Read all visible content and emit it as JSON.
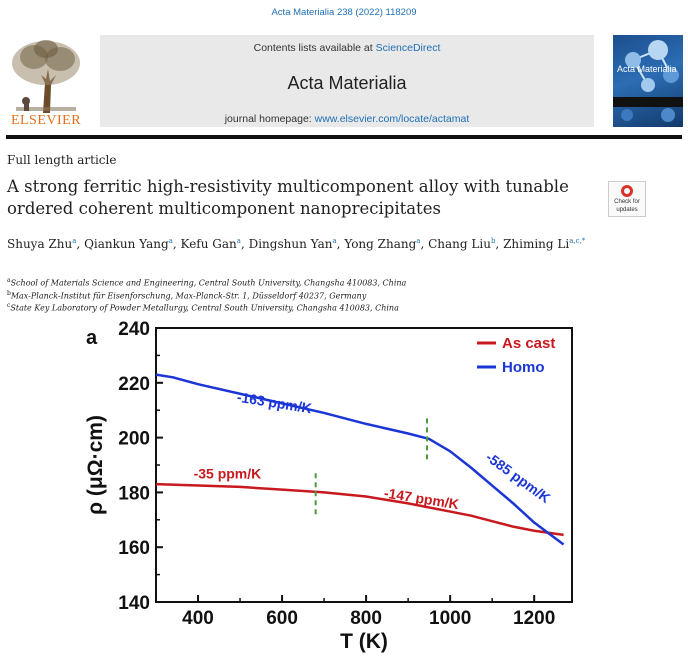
{
  "citation": "Acta Materialia 238 (2022) 118209",
  "masthead": {
    "contents_prefix": "Contents lists available at",
    "contents_link": "ScienceDirect",
    "journal_title": "Acta Materialia",
    "homepage_prefix": "journal homepage:",
    "homepage_link": "www.elsevier.com/locate/actamat"
  },
  "publisher": "ELSEVIER",
  "cover_title": "Acta Materialia",
  "article_type": "Full length article",
  "title": "A strong ferritic high-resistivity multicomponent alloy with tunable ordered coherent multicomponent nanoprecipitates",
  "badge": {
    "line1": "Check for",
    "line2": "updates"
  },
  "authors": [
    {
      "name": "Shuya Zhu",
      "aff": "a"
    },
    {
      "name": "Qiankun Yang",
      "aff": "a"
    },
    {
      "name": "Kefu Gan",
      "aff": "a"
    },
    {
      "name": "Dingshun Yan",
      "aff": "a"
    },
    {
      "name": "Yong Zhang",
      "aff": "a"
    },
    {
      "name": "Chang Liu",
      "aff": "b"
    },
    {
      "name": "Zhiming Li",
      "aff": "a,c,*"
    }
  ],
  "affiliations": [
    {
      "key": "a",
      "text": "School of Materials Science and Engineering, Central South University, Changsha 410083, China"
    },
    {
      "key": "b",
      "text": "Max-Planck-Institut für Eisenforschung, Max-Planck-Str. 1, Düsseldorf 40237, Germany"
    },
    {
      "key": "c",
      "text": "State Key Laboratory of Powder Metallurgy, Central South University, Changsha 410083, China"
    }
  ],
  "chart_data": {
    "type": "line",
    "panel_label": "a",
    "xlabel": "T (K)",
    "ylabel": "ρ (μΩ·cm)",
    "xlim": [
      300,
      1290
    ],
    "ylim": [
      140,
      240
    ],
    "xticks": [
      400,
      600,
      800,
      1000,
      1200
    ],
    "yticks": [
      140,
      160,
      180,
      200,
      220,
      240
    ],
    "grid": false,
    "legend_position": "top-right",
    "series": [
      {
        "name": "As cast",
        "color": "#c8191f",
        "x": [
          300,
          400,
          500,
          600,
          700,
          800,
          900,
          1000,
          1050,
          1100,
          1150,
          1200,
          1270
        ],
        "y": [
          183,
          182.5,
          182,
          181,
          180,
          178.5,
          176,
          173,
          171.5,
          169.5,
          167.5,
          166,
          164.5
        ]
      },
      {
        "name": "Homo",
        "color": "#1b35d6",
        "x": [
          300,
          340,
          400,
          500,
          600,
          700,
          800,
          900,
          950,
          1000,
          1050,
          1100,
          1150,
          1200,
          1270
        ],
        "y": [
          223,
          222,
          219.5,
          216,
          212.5,
          209,
          205,
          201.5,
          199.5,
          195,
          189,
          182.5,
          176,
          169,
          161
        ]
      }
    ],
    "annotations": [
      {
        "text": "-163 ppm/K",
        "color": "#1b35d6",
        "x": 580,
        "y": 211,
        "rotate": 9
      },
      {
        "text": "-585 ppm/K",
        "color": "#1b35d6",
        "x": 1155,
        "y": 184,
        "rotate": 36
      },
      {
        "text": "-35 ppm/K",
        "color": "#c8191f",
        "x": 470,
        "y": 185
      },
      {
        "text": "-147 ppm/K",
        "color": "#c8191f",
        "x": 930,
        "y": 176,
        "rotate": 9
      }
    ],
    "markers": [
      {
        "x": 680,
        "ymin": 171,
        "ymax": 187,
        "color": "#4a9a3a",
        "style": "dashed"
      },
      {
        "x": 945,
        "ymin": 191,
        "ymax": 207,
        "color": "#4a9a3a",
        "style": "dashed"
      }
    ]
  }
}
